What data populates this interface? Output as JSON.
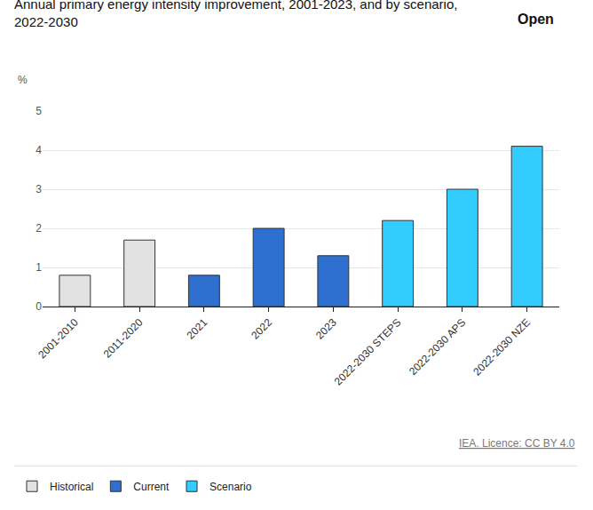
{
  "chart_data": {
    "type": "bar",
    "title": "Annual primary energy intensity improvement, 2001-2023, and by scenario, 2022-2030",
    "y_label": "%",
    "annotations": [
      "Open",
      "IEA. Licence: CC BY 4.0"
    ],
    "categories": [
      "2001-2010",
      "2011-2020",
      "2021",
      "2022",
      "2023",
      "2022-2030 STEPS",
      "2022-2030 APS",
      "2022-2030 NZE"
    ],
    "series": [
      {
        "name": "Historical",
        "color": "#e2e2e2",
        "values": [
          0.8,
          1.7,
          null,
          null,
          null,
          null,
          null,
          null
        ]
      },
      {
        "name": "Current",
        "color": "#2f6fd0",
        "values": [
          null,
          null,
          0.8,
          2.0,
          1.3,
          null,
          null,
          null
        ]
      },
      {
        "name": "Scenario",
        "color": "#33ccff",
        "values": [
          null,
          null,
          null,
          null,
          null,
          2.2,
          3.0,
          4.1
        ]
      }
    ],
    "ylim": [
      0,
      5
    ],
    "yticks": [
      0,
      1,
      2,
      3,
      4,
      5
    ],
    "grid": true,
    "legend": "bottom left"
  }
}
